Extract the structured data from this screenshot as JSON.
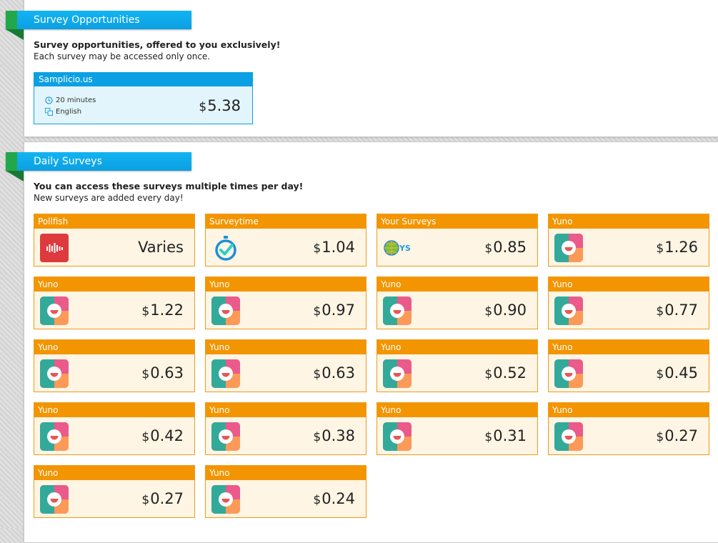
{
  "survey_opportunities": {
    "title": "Survey Opportunities",
    "heading": "Survey opportunities, offered to you exclusively!",
    "subheading": "Each survey may be accessed only once.",
    "featured": {
      "provider": "Samplicio.us",
      "duration": "20 minutes",
      "language": "English",
      "currency": "$",
      "amount": "5.38"
    }
  },
  "daily_surveys": {
    "title": "Daily Surveys",
    "heading": "You can access these surveys multiple times per day!",
    "subheading": "New surveys are added every day!",
    "cards": [
      {
        "provider": "Pollfish",
        "logo": "pollfish-logo",
        "currency": "",
        "amount": "Varies"
      },
      {
        "provider": "Surveytime",
        "logo": "surveytime-logo",
        "currency": "$",
        "amount": "1.04"
      },
      {
        "provider": "Your Surveys",
        "logo": "yoursurveys-logo",
        "logo_text": "YS",
        "currency": "$",
        "amount": "0.85"
      },
      {
        "provider": "Yuno",
        "logo": "yuno-logo",
        "currency": "$",
        "amount": "1.26"
      },
      {
        "provider": "Yuno",
        "logo": "yuno-logo",
        "currency": "$",
        "amount": "1.22"
      },
      {
        "provider": "Yuno",
        "logo": "yuno-logo",
        "currency": "$",
        "amount": "0.97"
      },
      {
        "provider": "Yuno",
        "logo": "yuno-logo",
        "currency": "$",
        "amount": "0.90"
      },
      {
        "provider": "Yuno",
        "logo": "yuno-logo",
        "currency": "$",
        "amount": "0.77"
      },
      {
        "provider": "Yuno",
        "logo": "yuno-logo",
        "currency": "$",
        "amount": "0.63"
      },
      {
        "provider": "Yuno",
        "logo": "yuno-logo",
        "currency": "$",
        "amount": "0.63"
      },
      {
        "provider": "Yuno",
        "logo": "yuno-logo",
        "currency": "$",
        "amount": "0.52"
      },
      {
        "provider": "Yuno",
        "logo": "yuno-logo",
        "currency": "$",
        "amount": "0.45"
      },
      {
        "provider": "Yuno",
        "logo": "yuno-logo",
        "currency": "$",
        "amount": "0.42"
      },
      {
        "provider": "Yuno",
        "logo": "yuno-logo",
        "currency": "$",
        "amount": "0.38"
      },
      {
        "provider": "Yuno",
        "logo": "yuno-logo",
        "currency": "$",
        "amount": "0.31"
      },
      {
        "provider": "Yuno",
        "logo": "yuno-logo",
        "currency": "$",
        "amount": "0.27"
      },
      {
        "provider": "Yuno",
        "logo": "yuno-logo",
        "currency": "$",
        "amount": "0.27"
      },
      {
        "provider": "Yuno",
        "logo": "yuno-logo",
        "currency": "$",
        "amount": "0.24"
      }
    ]
  },
  "colors": {
    "accent_blue": "#0ba0e3",
    "ribbon_green": "#22a84a",
    "card_orange": "#f39500",
    "card_bg": "#fef5e4",
    "featured_bg": "#e3f5fc"
  }
}
